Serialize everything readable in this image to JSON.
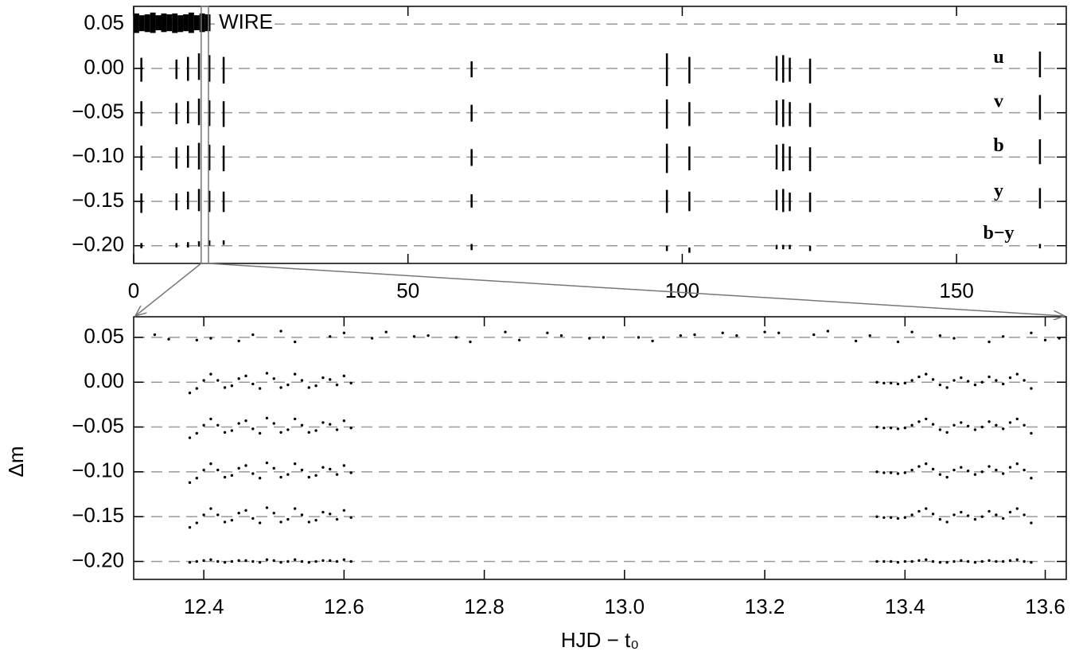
{
  "chart_data": [
    {
      "type": "range",
      "color": "#000000",
      "grid": true,
      "xlim": [
        0,
        170
      ],
      "ylim": [
        -0.22,
        0.07
      ],
      "xticks": [
        0,
        50,
        100,
        150
      ],
      "yticks": [
        0.05,
        {
          "value": 0,
          "label": "0.00"
        },
        {
          "value": -0.05,
          "label": "−0.05"
        },
        {
          "value": -0.1,
          "label": "−0.10"
        },
        {
          "value": -0.15,
          "label": "−0.15"
        },
        {
          "value": -0.2,
          "label": "−0.20"
        }
      ],
      "series": [
        {
          "name": "WIRE",
          "x": [
            0.5,
            1.5,
            2.5,
            3.5,
            4.5,
            5.5,
            6.5,
            7.5,
            8.5,
            9.5,
            10.5,
            11.5,
            12.5,
            13.5
          ],
          "low": [
            0.04,
            0.042,
            0.041,
            0.04,
            0.043,
            0.041,
            0.042,
            0.04,
            0.041,
            0.042,
            0.04,
            0.043,
            0.041,
            0.042
          ],
          "high": [
            0.062,
            0.06,
            0.061,
            0.063,
            0.06,
            0.062,
            0.061,
            0.062,
            0.06,
            0.061,
            0.063,
            0.06,
            0.062,
            0.061
          ]
        },
        {
          "name": "u",
          "x": [
            1.4,
            7.8,
            9.9,
            11.9,
            13.8,
            16.4,
            61.6,
            97.2,
            101.3,
            117.2,
            118.4,
            119.6,
            123.3,
            165.2
          ],
          "low": [
            -0.015,
            -0.012,
            -0.014,
            -0.013,
            -0.015,
            -0.017,
            -0.01,
            -0.02,
            -0.017,
            -0.014,
            -0.016,
            -0.015,
            -0.017,
            -0.01
          ],
          "high": [
            0.012,
            0.01,
            0.013,
            0.017,
            0.015,
            0.013,
            0.008,
            0.017,
            0.013,
            0.014,
            0.015,
            0.012,
            0.011,
            0.019
          ]
        },
        {
          "name": "v",
          "x": [
            1.4,
            7.8,
            9.9,
            11.9,
            13.8,
            16.4,
            61.6,
            97.2,
            101.3,
            117.2,
            118.4,
            119.6,
            123.3,
            165.2
          ],
          "low": [
            -0.065,
            -0.063,
            -0.062,
            -0.064,
            -0.065,
            -0.066,
            -0.06,
            -0.068,
            -0.065,
            -0.064,
            -0.066,
            -0.065,
            -0.066,
            -0.058
          ],
          "high": [
            -0.037,
            -0.039,
            -0.037,
            -0.034,
            -0.036,
            -0.037,
            -0.041,
            -0.035,
            -0.038,
            -0.036,
            -0.035,
            -0.038,
            -0.039,
            -0.03
          ]
        },
        {
          "name": "b",
          "x": [
            1.4,
            7.8,
            9.9,
            11.9,
            13.8,
            16.4,
            61.6,
            97.2,
            101.3,
            117.2,
            118.4,
            119.6,
            123.3,
            165.2
          ],
          "low": [
            -0.115,
            -0.113,
            -0.112,
            -0.114,
            -0.115,
            -0.116,
            -0.11,
            -0.118,
            -0.115,
            -0.114,
            -0.116,
            -0.115,
            -0.116,
            -0.108
          ],
          "high": [
            -0.087,
            -0.089,
            -0.087,
            -0.084,
            -0.086,
            -0.087,
            -0.091,
            -0.085,
            -0.088,
            -0.086,
            -0.085,
            -0.088,
            -0.089,
            -0.08
          ]
        },
        {
          "name": "y",
          "x": [
            1.4,
            7.8,
            9.9,
            11.9,
            13.8,
            16.4,
            61.6,
            97.2,
            101.3,
            117.2,
            118.4,
            119.6,
            123.3,
            165.2
          ],
          "low": [
            -0.163,
            -0.16,
            -0.159,
            -0.161,
            -0.162,
            -0.162,
            -0.157,
            -0.163,
            -0.161,
            -0.16,
            -0.162,
            -0.161,
            -0.162,
            -0.158
          ],
          "high": [
            -0.141,
            -0.141,
            -0.139,
            -0.136,
            -0.138,
            -0.139,
            -0.142,
            -0.137,
            -0.139,
            -0.137,
            -0.136,
            -0.14,
            -0.14,
            -0.135
          ]
        },
        {
          "name": "b−y",
          "x": [
            1.4,
            7.8,
            9.9,
            11.9,
            13.8,
            16.4,
            61.6,
            97.2,
            101.3,
            117.2,
            118.4,
            119.6,
            123.3,
            165.2
          ],
          "low": [
            -0.203,
            -0.202,
            -0.202,
            -0.201,
            -0.2,
            -0.199,
            -0.205,
            -0.206,
            -0.208,
            -0.204,
            -0.204,
            -0.204,
            -0.206,
            -0.203
          ],
          "high": [
            -0.197,
            -0.197,
            -0.196,
            -0.195,
            -0.194,
            -0.194,
            -0.198,
            -0.2,
            -0.202,
            -0.199,
            -0.199,
            -0.199,
            -0.2,
            -0.198
          ]
        }
      ]
    },
    {
      "type": "scatter",
      "color": "#000000",
      "grid": true,
      "xlabel": "HJD − t₀",
      "ylabel": "Δm",
      "xlim": [
        12.3,
        13.63
      ],
      "ylim": [
        -0.22,
        0.073
      ],
      "xticks": [
        12.4,
        12.6,
        12.8,
        {
          "value": 13,
          "label": "13.0"
        },
        13.2,
        13.4,
        13.6
      ],
      "yticks": [
        0.05,
        {
          "value": 0,
          "label": "0.00"
        },
        {
          "value": -0.05,
          "label": "−0.05"
        },
        {
          "value": -0.1,
          "label": "−0.10"
        },
        {
          "value": -0.15,
          "label": "−0.15"
        },
        {
          "value": -0.2,
          "label": "−0.20"
        }
      ],
      "x": [
        12.38,
        12.39,
        12.4,
        12.41,
        12.42,
        12.43,
        12.44,
        12.45,
        12.46,
        12.47,
        12.48,
        12.49,
        12.5,
        12.51,
        12.52,
        12.53,
        12.54,
        12.55,
        12.56,
        12.57,
        12.58,
        12.59,
        12.6,
        12.61,
        13.36,
        13.37,
        13.38,
        13.39,
        13.4,
        13.41,
        13.42,
        13.43,
        13.44,
        13.45,
        13.46,
        13.47,
        13.48,
        13.49,
        13.5,
        13.51,
        13.52,
        13.53,
        13.54,
        13.55,
        13.56,
        13.57,
        13.58
      ],
      "series": [
        {
          "x": [
            12.33,
            12.35,
            12.39,
            12.41,
            12.45,
            12.47,
            12.51,
            12.53,
            12.58,
            12.6,
            12.64,
            12.66,
            12.7,
            12.72,
            12.76,
            12.78,
            12.83,
            12.85,
            12.89,
            12.91,
            12.95,
            12.97,
            13.02,
            13.04,
            13.08,
            13.1,
            13.14,
            13.16,
            13.2,
            13.22,
            13.27,
            13.29,
            13.33,
            13.35,
            13.39,
            13.41,
            13.45,
            13.47,
            13.52,
            13.54,
            13.58,
            13.6,
            13.62
          ],
          "values": [
            0.053,
            0.048,
            0.047,
            0.049,
            0.046,
            0.053,
            0.057,
            0.045,
            0.051,
            0.055,
            0.049,
            0.056,
            0.051,
            0.052,
            0.05,
            0.045,
            0.056,
            0.047,
            0.055,
            0.052,
            0.049,
            0.05,
            0.05,
            0.046,
            0.052,
            0.053,
            0.055,
            0.052,
            0.056,
            0.055,
            0.053,
            0.057,
            0.046,
            0.052,
            0.045,
            0.056,
            0.052,
            0.049,
            0.045,
            0.051,
            0.055,
            0.047,
            0.049
          ]
        },
        {
          "values": [
            -0.012,
            -0.007,
            0.002,
            0.009,
            0.002,
            -0.006,
            -0.004,
            0.004,
            0.007,
            -0.002,
            -0.007,
            0.01,
            0.004,
            -0.006,
            -0.003,
            0.009,
            0.002,
            -0.006,
            -0.004,
            0.005,
            0.003,
            -0.003,
            0.007,
            -0.001,
            0,
            -0.001,
            -0.001,
            -0.002,
            -0.001,
            0.002,
            0.006,
            0.009,
            0.003,
            -0.003,
            -0.006,
            0.002,
            0.005,
            0.001,
            -0.003,
            0,
            0.006,
            0.002,
            -0.002,
            0.005,
            0.009,
            0.002,
            -0.007
          ]
        },
        {
          "values": [
            -0.062,
            -0.057,
            -0.048,
            -0.041,
            -0.048,
            -0.056,
            -0.054,
            -0.046,
            -0.043,
            -0.052,
            -0.057,
            -0.04,
            -0.046,
            -0.056,
            -0.053,
            -0.041,
            -0.048,
            -0.056,
            -0.054,
            -0.045,
            -0.047,
            -0.053,
            -0.043,
            -0.051,
            -0.05,
            -0.051,
            -0.051,
            -0.052,
            -0.051,
            -0.048,
            -0.044,
            -0.041,
            -0.047,
            -0.053,
            -0.056,
            -0.048,
            -0.045,
            -0.049,
            -0.053,
            -0.05,
            -0.044,
            -0.048,
            -0.052,
            -0.045,
            -0.041,
            -0.048,
            -0.057
          ]
        },
        {
          "values": [
            -0.112,
            -0.107,
            -0.098,
            -0.091,
            -0.098,
            -0.106,
            -0.104,
            -0.096,
            -0.093,
            -0.102,
            -0.107,
            -0.09,
            -0.096,
            -0.106,
            -0.103,
            -0.091,
            -0.098,
            -0.106,
            -0.104,
            -0.095,
            -0.097,
            -0.103,
            -0.093,
            -0.101,
            -0.1,
            -0.101,
            -0.101,
            -0.102,
            -0.101,
            -0.098,
            -0.094,
            -0.091,
            -0.097,
            -0.103,
            -0.106,
            -0.098,
            -0.095,
            -0.099,
            -0.103,
            -0.1,
            -0.094,
            -0.098,
            -0.102,
            -0.095,
            -0.091,
            -0.098,
            -0.107
          ]
        },
        {
          "values": [
            -0.162,
            -0.157,
            -0.148,
            -0.141,
            -0.148,
            -0.156,
            -0.154,
            -0.146,
            -0.143,
            -0.152,
            -0.157,
            -0.14,
            -0.146,
            -0.156,
            -0.153,
            -0.141,
            -0.148,
            -0.156,
            -0.154,
            -0.145,
            -0.147,
            -0.153,
            -0.143,
            -0.151,
            -0.15,
            -0.151,
            -0.151,
            -0.152,
            -0.151,
            -0.148,
            -0.144,
            -0.141,
            -0.147,
            -0.153,
            -0.156,
            -0.148,
            -0.145,
            -0.149,
            -0.153,
            -0.15,
            -0.144,
            -0.148,
            -0.152,
            -0.145,
            -0.141,
            -0.148,
            -0.157
          ]
        },
        {
          "values": [
            -0.201,
            -0.2,
            -0.199,
            -0.198,
            -0.2,
            -0.201,
            -0.2,
            -0.199,
            -0.199,
            -0.2,
            -0.201,
            -0.198,
            -0.199,
            -0.201,
            -0.2,
            -0.198,
            -0.2,
            -0.201,
            -0.2,
            -0.199,
            -0.199,
            -0.2,
            -0.198,
            -0.2,
            -0.2,
            -0.2,
            -0.2,
            -0.201,
            -0.2,
            -0.2,
            -0.199,
            -0.198,
            -0.2,
            -0.201,
            -0.201,
            -0.2,
            -0.199,
            -0.2,
            -0.201,
            -0.2,
            -0.199,
            -0.2,
            -0.2,
            -0.199,
            -0.198,
            -0.2,
            -0.201
          ]
        }
      ]
    }
  ]
}
